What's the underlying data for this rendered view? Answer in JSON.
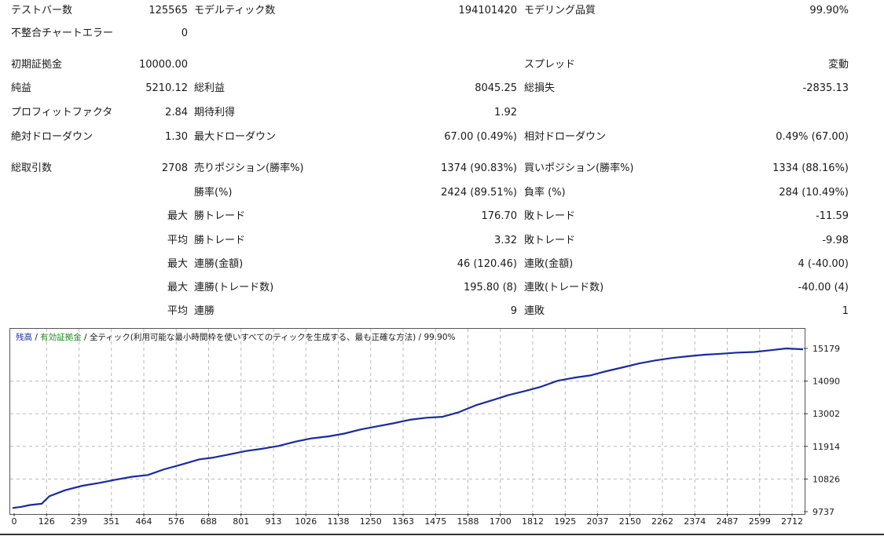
{
  "report": {
    "rows": [
      {
        "l1": "テストバー数",
        "v1": "125565",
        "l2": "モデルティック数",
        "v2": "194101420",
        "l3": "モデリング品質",
        "v3": "99.90%"
      },
      {
        "l1": "不整合チャートエラー",
        "v1": "0",
        "l2": "",
        "v2": "",
        "l3": "",
        "v3": ""
      },
      {
        "l1": "初期証拠金",
        "v1": "10000.00",
        "l2": "",
        "v2": "",
        "l3": "スプレッド",
        "v3": "変動"
      },
      {
        "l1": "純益",
        "v1": "5210.12",
        "l2": "総利益",
        "v2": "8045.25",
        "l3": "総損失",
        "v3": "-2835.13"
      },
      {
        "l1": "プロフィットファクタ",
        "v1": "2.84",
        "l2": "期待利得",
        "v2": "1.92",
        "l3": "",
        "v3": ""
      },
      {
        "l1": "絶対ドローダウン",
        "v1": "1.30",
        "l2": "最大ドローダウン",
        "v2": "67.00 (0.49%)",
        "l3": "相対ドローダウン",
        "v3": "0.49% (67.00)"
      },
      {
        "l1": "総取引数",
        "v1": "2708",
        "l2": "売りポジション(勝率%)",
        "v2": "1374 (90.83%)",
        "l3": "買いポジション(勝率%)",
        "v3": "1334 (88.16%)"
      },
      {
        "l1": "",
        "v1": "",
        "l2": "勝率(%)",
        "v2": "2424 (89.51%)",
        "l3": "負率 (%)",
        "v3": "284 (10.49%)"
      },
      {
        "l1": "",
        "v1": "最大",
        "l2": "勝トレード",
        "v2": "176.70",
        "l3": "敗トレード",
        "v3": "-11.59"
      },
      {
        "l1": "",
        "v1": "平均",
        "l2": "勝トレード",
        "v2": "3.32",
        "l3": "敗トレード",
        "v3": "-9.98"
      },
      {
        "l1": "",
        "v1": "最大",
        "l2": "連勝(金額)",
        "v2": "46 (120.46)",
        "l3": "連敗(金額)",
        "v3": "4 (-40.00)"
      },
      {
        "l1": "",
        "v1": "最大",
        "l2": "連勝(トレード数)",
        "v2": "195.80 (8)",
        "l3": "連敗(トレード数)",
        "v3": "-40.00 (4)"
      },
      {
        "l1": "",
        "v1": "平均",
        "l2": "連勝",
        "v2": "9",
        "l3": "連敗",
        "v3": "1"
      }
    ]
  },
  "legend": {
    "balance": "残高",
    "sep1": " / ",
    "equity": "有効証拠金",
    "sep2": " / ",
    "model": "全ティック(利用可能な最小時間枠を使いすべてのティックを生成する、最も正確な方法)",
    "sep3": " / ",
    "quality": "99.90%"
  },
  "colors": {
    "balance_line": "#1a2aa0",
    "equity_text": "#1a8a1a",
    "grid": "#b8b8b8"
  },
  "chart_data": {
    "type": "line",
    "x_ticks": [
      "0",
      "126",
      "239",
      "351",
      "464",
      "576",
      "688",
      "801",
      "913",
      "1026",
      "1138",
      "1250",
      "1363",
      "1475",
      "1588",
      "1700",
      "1812",
      "1925",
      "2037",
      "2150",
      "2262",
      "2374",
      "2487",
      "2599",
      "2712"
    ],
    "y_ticks": [
      "15179",
      "14090",
      "13002",
      "11914",
      "10826",
      "9737"
    ],
    "ylim": [
      9737,
      15179
    ],
    "xlim": [
      0,
      2712
    ],
    "series": [
      {
        "name": "残高",
        "x": [
          0,
          30,
          60,
          100,
          126,
          180,
          239,
          300,
          351,
          410,
          464,
          520,
          576,
          640,
          688,
          745,
          801,
          860,
          913,
          970,
          1026,
          1085,
          1138,
          1195,
          1250,
          1305,
          1363,
          1420,
          1475,
          1530,
          1588,
          1645,
          1700,
          1755,
          1812,
          1870,
          1925,
          1982,
          2037,
          2095,
          2150,
          2205,
          2262,
          2320,
          2374,
          2430,
          2487,
          2545,
          2599,
          2655,
          2712
        ],
        "y": [
          9860,
          9900,
          9960,
          10000,
          10250,
          10450,
          10600,
          10700,
          10800,
          10900,
          10960,
          11150,
          11300,
          11480,
          11540,
          11650,
          11760,
          11840,
          11930,
          12070,
          12180,
          12250,
          12340,
          12480,
          12580,
          12680,
          12800,
          12870,
          12900,
          13050,
          13280,
          13450,
          13620,
          13750,
          13900,
          14100,
          14200,
          14280,
          14420,
          14550,
          14680,
          14780,
          14860,
          14920,
          14970,
          15000,
          15040,
          15060,
          15120,
          15180,
          15150
        ]
      }
    ]
  }
}
